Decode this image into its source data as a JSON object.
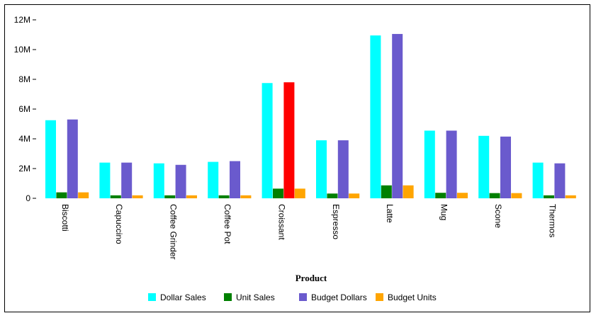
{
  "chart_data": {
    "type": "bar",
    "xlabel": "Product",
    "ylabel": "",
    "ylim": [
      0,
      12000000
    ],
    "y_ticks": [
      {
        "value": 0,
        "label": "0"
      },
      {
        "value": 2000000,
        "label": "2M"
      },
      {
        "value": 4000000,
        "label": "4M"
      },
      {
        "value": 6000000,
        "label": "6M"
      },
      {
        "value": 8000000,
        "label": "8M"
      },
      {
        "value": 10000000,
        "label": "10M"
      },
      {
        "value": 12000000,
        "label": "12M"
      }
    ],
    "grid": false,
    "legend": "bottom",
    "categories": [
      "Biscotti",
      "Capuccino",
      "Coffee Grinder",
      "Coffee Pot",
      "Croissant",
      "Espresso",
      "Latte",
      "Mug",
      "Scone",
      "Thermos"
    ],
    "series": [
      {
        "name": "Dollar Sales",
        "color": "#00FFFF",
        "values": [
          5250000,
          2400000,
          2350000,
          2450000,
          7750000,
          3900000,
          10950000,
          4550000,
          4200000,
          2400000
        ]
      },
      {
        "name": "Unit Sales",
        "color": "#008000",
        "values": [
          400000,
          200000,
          200000,
          200000,
          650000,
          320000,
          870000,
          370000,
          350000,
          200000
        ]
      },
      {
        "name": "Budget Dollars",
        "color": "#6A5ACD",
        "values": [
          5300000,
          2400000,
          2250000,
          2500000,
          7800000,
          3900000,
          11050000,
          4550000,
          4150000,
          2350000
        ]
      },
      {
        "name": "Budget Units",
        "color": "#FFA500",
        "values": [
          400000,
          200000,
          200000,
          200000,
          650000,
          320000,
          870000,
          370000,
          350000,
          200000
        ]
      }
    ],
    "highlight": {
      "series_index": 2,
      "category_index": 4,
      "color": "#FF0000"
    }
  }
}
